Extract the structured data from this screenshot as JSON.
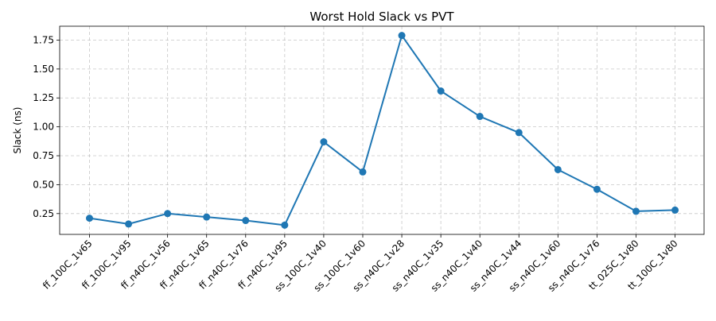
{
  "chart_data": {
    "type": "line",
    "title": "Worst Hold Slack vs PVT",
    "xlabel": "",
    "ylabel": "Slack (ns)",
    "categories": [
      "ff_100C_1v65",
      "ff_100C_1v95",
      "ff_n40C_1v56",
      "ff_n40C_1v65",
      "ff_n40C_1v76",
      "ff_n40C_1v95",
      "ss_100C_1v40",
      "ss_100C_1v60",
      "ss_n40C_1v28",
      "ss_n40C_1v35",
      "ss_n40C_1v40",
      "ss_n40C_1v44",
      "ss_n40C_1v60",
      "ss_n40C_1v76",
      "tt_025C_1v80",
      "tt_100C_1v80"
    ],
    "series": [
      {
        "values": [
          0.21,
          0.16,
          0.25,
          0.22,
          0.19,
          0.15,
          0.87,
          0.61,
          1.79,
          1.31,
          1.09,
          0.95,
          0.63,
          0.46,
          0.27,
          0.28
        ],
        "color": "#1f77b4"
      }
    ],
    "yticks": [
      "0.25",
      "0.50",
      "0.75",
      "1.00",
      "1.25",
      "1.50",
      "1.75"
    ],
    "ylim": [
      0.07,
      1.87
    ],
    "grid": true,
    "legend": "none"
  }
}
